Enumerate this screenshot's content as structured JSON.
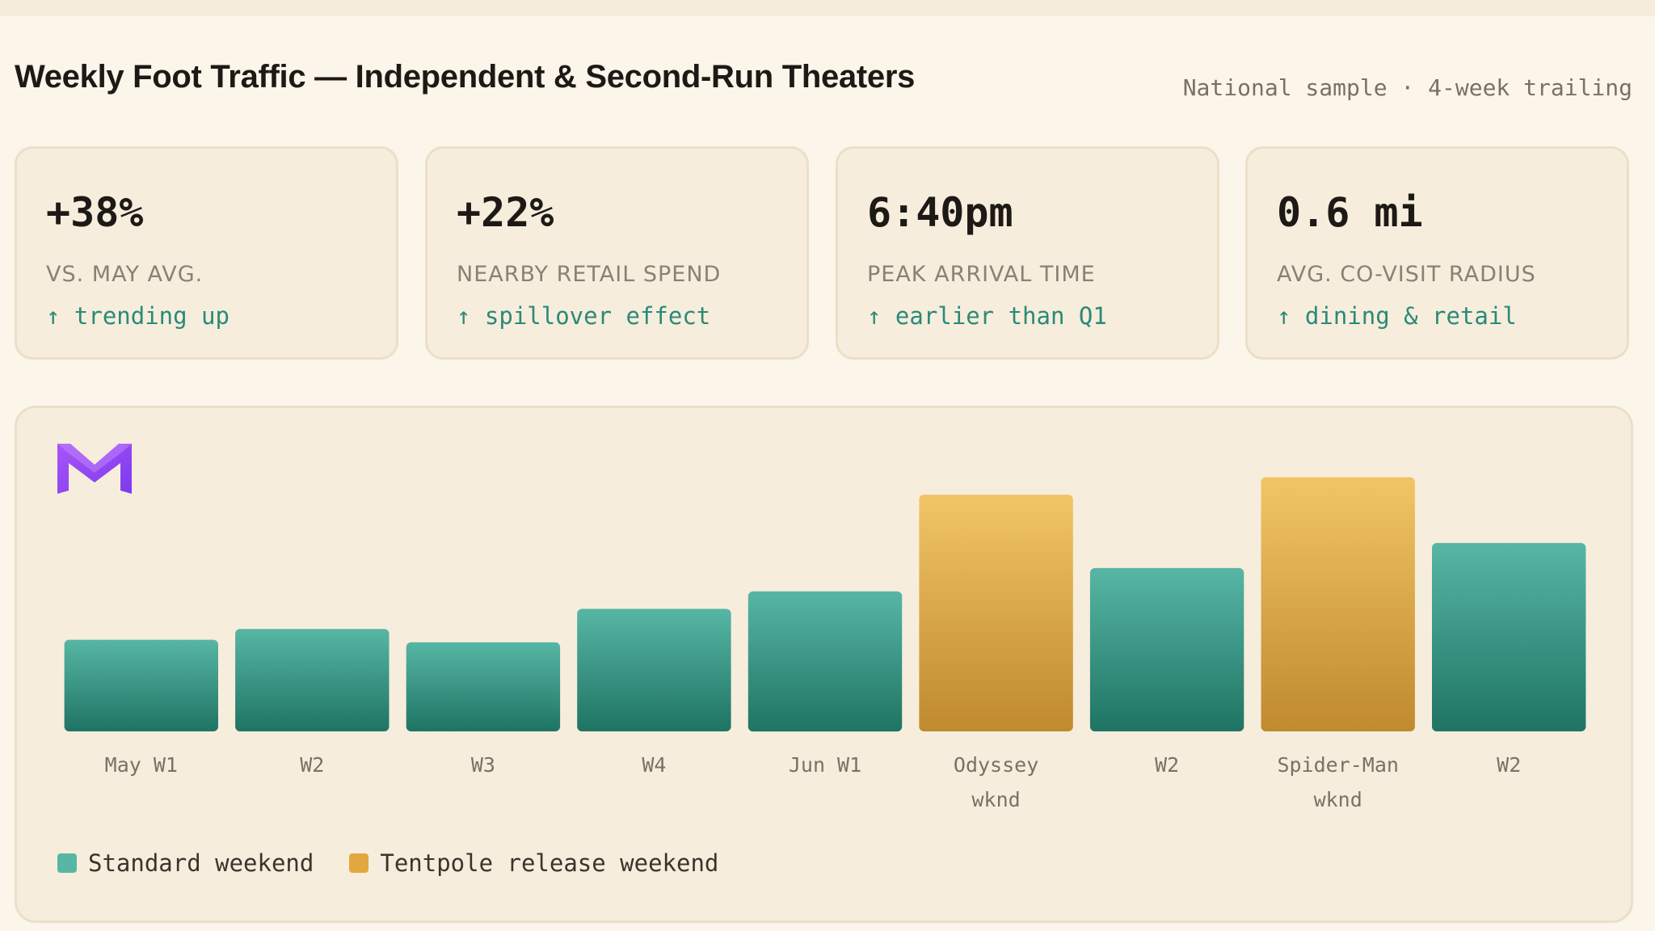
{
  "header": {
    "title": "Weekly Foot Traffic — Independent & Second-Run Theaters",
    "subtitle": "National sample · 4-week trailing"
  },
  "stats": [
    {
      "value": "+38%",
      "label": "VS. MAY AVG.",
      "trend": "↑ trending up"
    },
    {
      "value": "+22%",
      "label": "NEARBY RETAIL SPEND",
      "trend": "↑ spillover effect"
    },
    {
      "value": "6:40pm",
      "label": "PEAK ARRIVAL TIME",
      "trend": "↑ earlier than Q1"
    },
    {
      "value": "0.6 mi",
      "label": "AVG. CO-VISIT RADIUS",
      "trend": "↑ dining & retail"
    }
  ],
  "colors": {
    "standard_top": "#57b6a5",
    "standard_bottom": "#1f7463",
    "tentpole_top": "#f1c565",
    "tentpole_bottom": "#c08a2f",
    "trend": "#2a8a78",
    "logo": "#8b5cf6"
  },
  "logo_icon": "m-logo-icon",
  "chart_data": {
    "type": "bar",
    "title": "",
    "xlabel": "",
    "ylabel": "",
    "grid": false,
    "legend_position": "bottom-left",
    "categories": [
      [
        "May W1"
      ],
      [
        "W2"
      ],
      [
        "W3"
      ],
      [
        "W4"
      ],
      [
        "Jun W1"
      ],
      [
        "Odyssey",
        "wknd"
      ],
      [
        "W2"
      ],
      [
        "Spider-Man",
        "wknd"
      ],
      [
        "W2"
      ]
    ],
    "values": [
      110,
      123,
      107,
      147,
      168,
      284,
      196,
      305,
      226
    ],
    "kinds": [
      "standard",
      "standard",
      "standard",
      "standard",
      "standard",
      "tentpole",
      "standard",
      "tentpole",
      "standard"
    ],
    "ylim": [
      0,
      320
    ],
    "legend": [
      {
        "key": "standard",
        "label": "Standard weekend"
      },
      {
        "key": "tentpole",
        "label": "Tentpole release weekend"
      }
    ]
  }
}
